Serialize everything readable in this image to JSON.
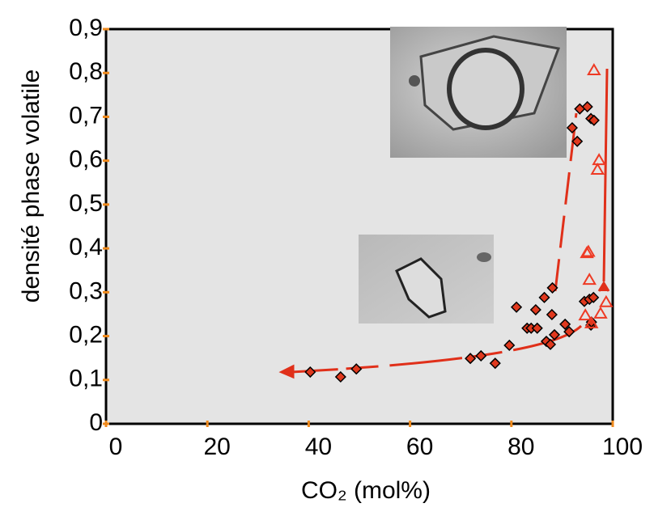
{
  "chart_data": {
    "type": "scatter",
    "x_label": "CO₂ (mol%)",
    "y_label": "densité phase volatile",
    "xlim": [
      0,
      100
    ],
    "xticks": [
      0,
      20,
      40,
      60,
      80,
      100
    ],
    "ylim": [
      0,
      0.9
    ],
    "yticks": [
      0,
      {
        "value": 0.1,
        "label": "0,1"
      },
      {
        "value": 0.2,
        "label": "0,2"
      },
      {
        "value": 0.3,
        "label": "0,3"
      },
      {
        "value": 0.4,
        "label": "0,4"
      },
      {
        "value": 0.5,
        "label": "0,5"
      },
      {
        "value": 0.6,
        "label": "0,6"
      },
      {
        "value": 0.7,
        "label": "0,7"
      },
      {
        "value": 0.8,
        "label": "0,8"
      },
      {
        "value": 0.9,
        "label": "0,9"
      }
    ],
    "series": [
      {
        "marker": "diamond",
        "color": "#e0391e",
        "x": [
          40.3,
          46.3,
          49.4,
          71.9,
          74.0,
          76.8,
          79.6,
          81.0,
          83.1,
          83.9,
          84.8,
          85.1,
          86.5,
          86.9,
          87.7,
          88.0,
          88.1,
          88.5,
          90.6,
          91.4,
          92.0,
          93.0,
          93.5,
          94.4,
          95.0,
          95.4,
          95.7,
          96.2,
          95.7,
          96.3,
          95.8
        ],
        "values": [
          0.118,
          0.107,
          0.125,
          0.149,
          0.155,
          0.138,
          0.179,
          0.266,
          0.218,
          0.218,
          0.26,
          0.218,
          0.288,
          0.188,
          0.181,
          0.249,
          0.31,
          0.203,
          0.227,
          0.21,
          0.675,
          0.644,
          0.718,
          0.279,
          0.723,
          0.284,
          0.696,
          0.288,
          0.225,
          0.692,
          0.232
        ]
      },
      {
        "marker": "triangle",
        "color": "#ee3a24",
        "x": [
          96.3,
          97.3,
          97.0,
          94.9,
          95.2,
          95.4,
          94.6,
          95.8,
          97.6,
          98.7
        ],
        "values": [
          0.806,
          0.601,
          0.579,
          0.389,
          0.392,
          0.328,
          0.247,
          0.229,
          0.251,
          0.277
        ]
      }
    ]
  }
}
